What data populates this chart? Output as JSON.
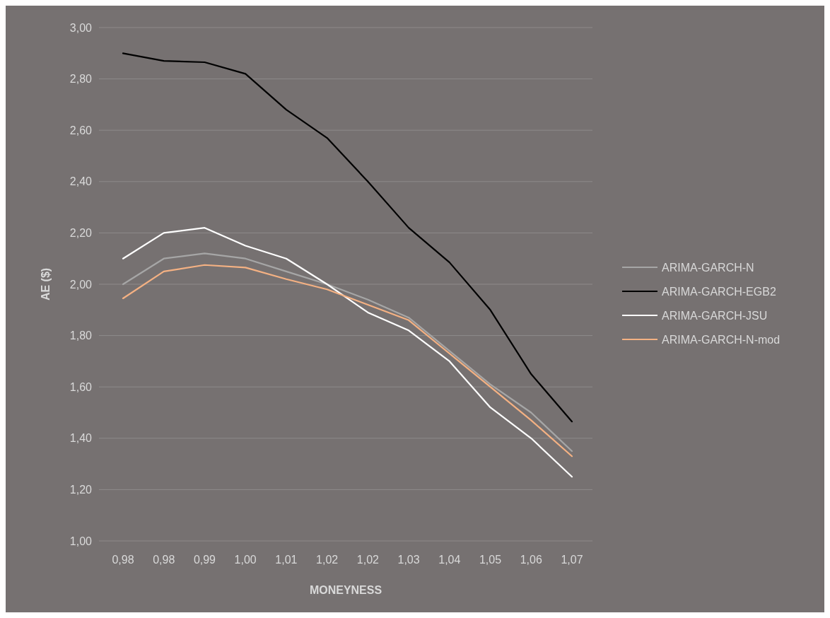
{
  "chart_data": {
    "type": "line",
    "xlabel": "MONEYNESS",
    "ylabel": "AE ($)",
    "categories": [
      "0,98",
      "0,98",
      "0,99",
      "1,00",
      "1,01",
      "1,02",
      "1,02",
      "1,03",
      "1,04",
      "1,05",
      "1,06",
      "1,07"
    ],
    "series": [
      {
        "name": "ARIMA-GARCH-N",
        "color": "#a6a6a6",
        "values": [
          2.0,
          2.1,
          2.12,
          2.1,
          2.05,
          2.0,
          1.94,
          1.87,
          1.74,
          1.61,
          1.5,
          1.35
        ]
      },
      {
        "name": "ARIMA-GARCH-EGB2",
        "color": "#000000",
        "values": [
          2.9,
          2.87,
          2.865,
          2.82,
          2.68,
          2.57,
          2.4,
          2.22,
          2.085,
          1.9,
          1.65,
          1.465
        ]
      },
      {
        "name": "ARIMA-GARCH-JSU",
        "color": "#ffffff",
        "values": [
          2.1,
          2.2,
          2.22,
          2.15,
          2.1,
          2.0,
          1.89,
          1.82,
          1.7,
          1.52,
          1.4,
          1.25
        ]
      },
      {
        "name": "ARIMA-GARCH-N-mod",
        "color": "#f4b183",
        "values": [
          1.945,
          2.05,
          2.075,
          2.065,
          2.02,
          1.98,
          1.92,
          1.86,
          1.73,
          1.6,
          1.47,
          1.33
        ]
      }
    ],
    "ylim": [
      1,
      3
    ],
    "yticks": [
      {
        "value": 1,
        "label": "1,00"
      },
      {
        "value": 1.2,
        "label": "1,20"
      },
      {
        "value": 1.4,
        "label": "1,40"
      },
      {
        "value": 1.6,
        "label": "1,60"
      },
      {
        "value": 1.8,
        "label": "1,80"
      },
      {
        "value": 2,
        "label": "2,00"
      },
      {
        "value": 2.2,
        "label": "2,20"
      },
      {
        "value": 2.4,
        "label": "2,40"
      },
      {
        "value": 2.6,
        "label": "2,60"
      },
      {
        "value": 2.8,
        "label": "2,80"
      },
      {
        "value": 3,
        "label": "3,00"
      }
    ],
    "grid": "y",
    "legend": "right",
    "marker": "none",
    "line_style": "solid"
  }
}
